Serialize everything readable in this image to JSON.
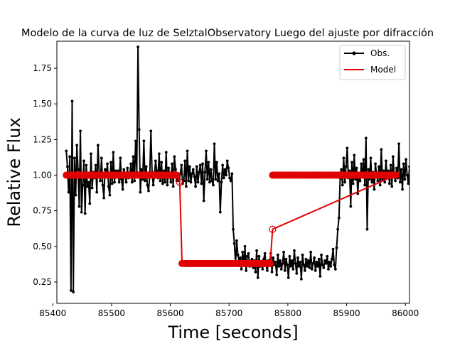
{
  "chart_data": {
    "type": "line",
    "title": "Modelo de la curva de luz de SelztalObservatory Luego del ajuste por difracción",
    "xlabel": "Time [seconds]",
    "ylabel": "Relative Flux",
    "xlim": [
      85407,
      86007
    ],
    "ylim": [
      0.1,
      1.94
    ],
    "xticks": [
      85400,
      85500,
      85600,
      85700,
      85800,
      85900,
      86000
    ],
    "yticks": [
      0.25,
      0.5,
      0.75,
      1.0,
      1.25,
      1.5,
      1.75
    ],
    "grid": false,
    "legend_position": "top-right",
    "colors": {
      "observed": "#000000",
      "model": "#e00000"
    },
    "series": [
      {
        "name": "Obs.",
        "style": "black line with point markers",
        "x_start": 85423,
        "x_step": 2,
        "values": [
          1.17,
          1.06,
          0.88,
          1.13,
          0.19,
          1.52,
          0.18,
          1.12,
          0.86,
          1.21,
          1.04,
          0.78,
          1.31,
          0.74,
          0.93,
          1.1,
          0.73,
          1.07,
          0.92,
          0.95,
          0.8,
          1.15,
          0.91,
          1.02,
          0.98,
          1.07,
          0.88,
          1.21,
          1.01,
          0.96,
          1.12,
          0.93,
          0.84,
          1.04,
          0.99,
          1.08,
          0.92,
          0.86,
          1.09,
          0.94,
          1.16,
          0.95,
          1.03,
          0.99,
          1.03,
          0.95,
          1.12,
          0.97,
          0.9,
          1.04,
          1.01,
          0.95,
          1.05,
          0.98,
          1.0,
          1.08,
          0.95,
          1.13,
          0.96,
          1.24,
          1.02,
          1.9,
          1.32,
          0.88,
          1.04,
          0.97,
          1.24,
          0.96,
          1.06,
          0.93,
          0.89,
          0.99,
          1.31,
          1.02,
          0.93,
          1.0,
          1.1,
          1.03,
          0.98,
          1.15,
          0.96,
          1.09,
          0.94,
          1.03,
          0.95,
          1.16,
          0.93,
          1.05,
          1.0,
          0.95,
          1.08,
          0.92,
          1.13,
          1.04,
          0.96,
          1.0,
          0.96,
          1.01,
          1.07,
          0.94,
          0.96,
          1.1,
          0.92,
          1.17,
          0.96,
          1.06,
          0.95,
          1.01,
          1.04,
          0.99,
          0.92,
          1.06,
          0.95,
          1.02,
          1.07,
          0.94,
          1.08,
          0.82,
          1.02,
          1.17,
          0.97,
          1.09,
          0.95,
          1.04,
          0.96,
          0.93,
          1.22,
          0.97,
          1.09,
          0.96,
          1.01,
          0.74,
          0.95,
          1.07,
          0.98,
          1.04,
          1.0,
          1.1,
          1.05,
          0.98,
          0.96,
          1.01,
          0.62,
          0.52,
          0.38,
          0.54,
          0.44,
          0.4,
          0.42,
          0.34,
          0.46,
          0.37,
          0.5,
          0.33,
          0.43,
          0.45,
          0.36,
          0.39,
          0.41,
          0.35,
          0.4,
          0.32,
          0.47,
          0.28,
          0.43,
          0.36,
          0.39,
          0.34,
          0.41,
          0.45,
          0.37,
          0.33,
          0.4,
          0.38,
          0.45,
          0.32,
          0.42,
          0.37,
          0.39,
          0.3,
          0.44,
          0.36,
          0.4,
          0.34,
          0.38,
          0.46,
          0.33,
          0.41,
          0.37,
          0.28,
          0.43,
          0.36,
          0.4,
          0.34,
          0.47,
          0.38,
          0.31,
          0.42,
          0.36,
          0.39,
          0.27,
          0.44,
          0.37,
          0.33,
          0.41,
          0.36,
          0.4,
          0.35,
          0.46,
          0.34,
          0.38,
          0.42,
          0.33,
          0.39,
          0.36,
          0.41,
          0.29,
          0.44,
          0.37,
          0.35,
          0.4,
          0.38,
          0.43,
          0.34,
          0.39,
          0.36,
          0.41,
          0.48,
          0.37,
          0.34,
          0.49,
          0.62,
          0.7,
          0.98,
          1.04,
          0.93,
          1.12,
          0.95,
          1.06,
          1.19,
          0.98,
          1.03,
          0.78,
          1.09,
          0.94,
          1.14,
          0.97,
          1.05,
          0.87,
          1.01,
          0.96,
          1.08,
          0.99,
          1.11,
          0.93,
          1.26,
          0.62,
          1.04,
          0.97,
          1.12,
          0.95,
          1.02,
          0.9,
          1.08,
          1.0,
          0.96,
          1.06,
          0.93,
          1.18,
          0.97,
          1.03,
          0.95,
          1.1,
          0.98,
          1.03,
          0.94,
          1.07,
          0.92,
          1.13,
          1.0,
          0.96,
          1.05,
          0.98,
          1.22,
          0.95,
          1.04,
          0.9,
          1.08,
          0.97,
          1.11,
          1.0,
          0.94,
          1.06,
          0.86,
          1.03,
          1.15,
          0.97,
          1.02,
          0.95,
          1.08,
          0.99,
          1.03,
          0.96,
          1.05,
          0.97,
          0.92,
          1.04,
          1.0,
          0.95,
          1.08,
          0.97,
          1.02,
          1.06,
          0.93,
          1.03,
          0.99,
          1.05,
          0.95,
          1.01,
          0.97,
          1.04,
          1.0,
          0.95,
          1.08,
          0.98,
          1.02,
          0.96,
          1.05,
          0.99,
          1.03,
          0.97,
          1.01,
          1.02,
          0.98,
          0.96,
          1.01
        ]
      },
      {
        "name": "Model",
        "style": "red line with large circular markers",
        "x": [
          85423,
          85612,
          85616,
          85620,
          85770,
          85774,
          85984
        ],
        "y": [
          1.0,
          1.0,
          0.95,
          0.38,
          0.38,
          0.62,
          1.0
        ],
        "plateau_steps": [
          {
            "from": 85423,
            "to": 85612,
            "y": 1.0
          },
          {
            "from": 85620,
            "to": 85770,
            "y": 0.38
          },
          {
            "from": 85774,
            "to": 85984,
            "y": 1.0
          }
        ]
      }
    ]
  }
}
